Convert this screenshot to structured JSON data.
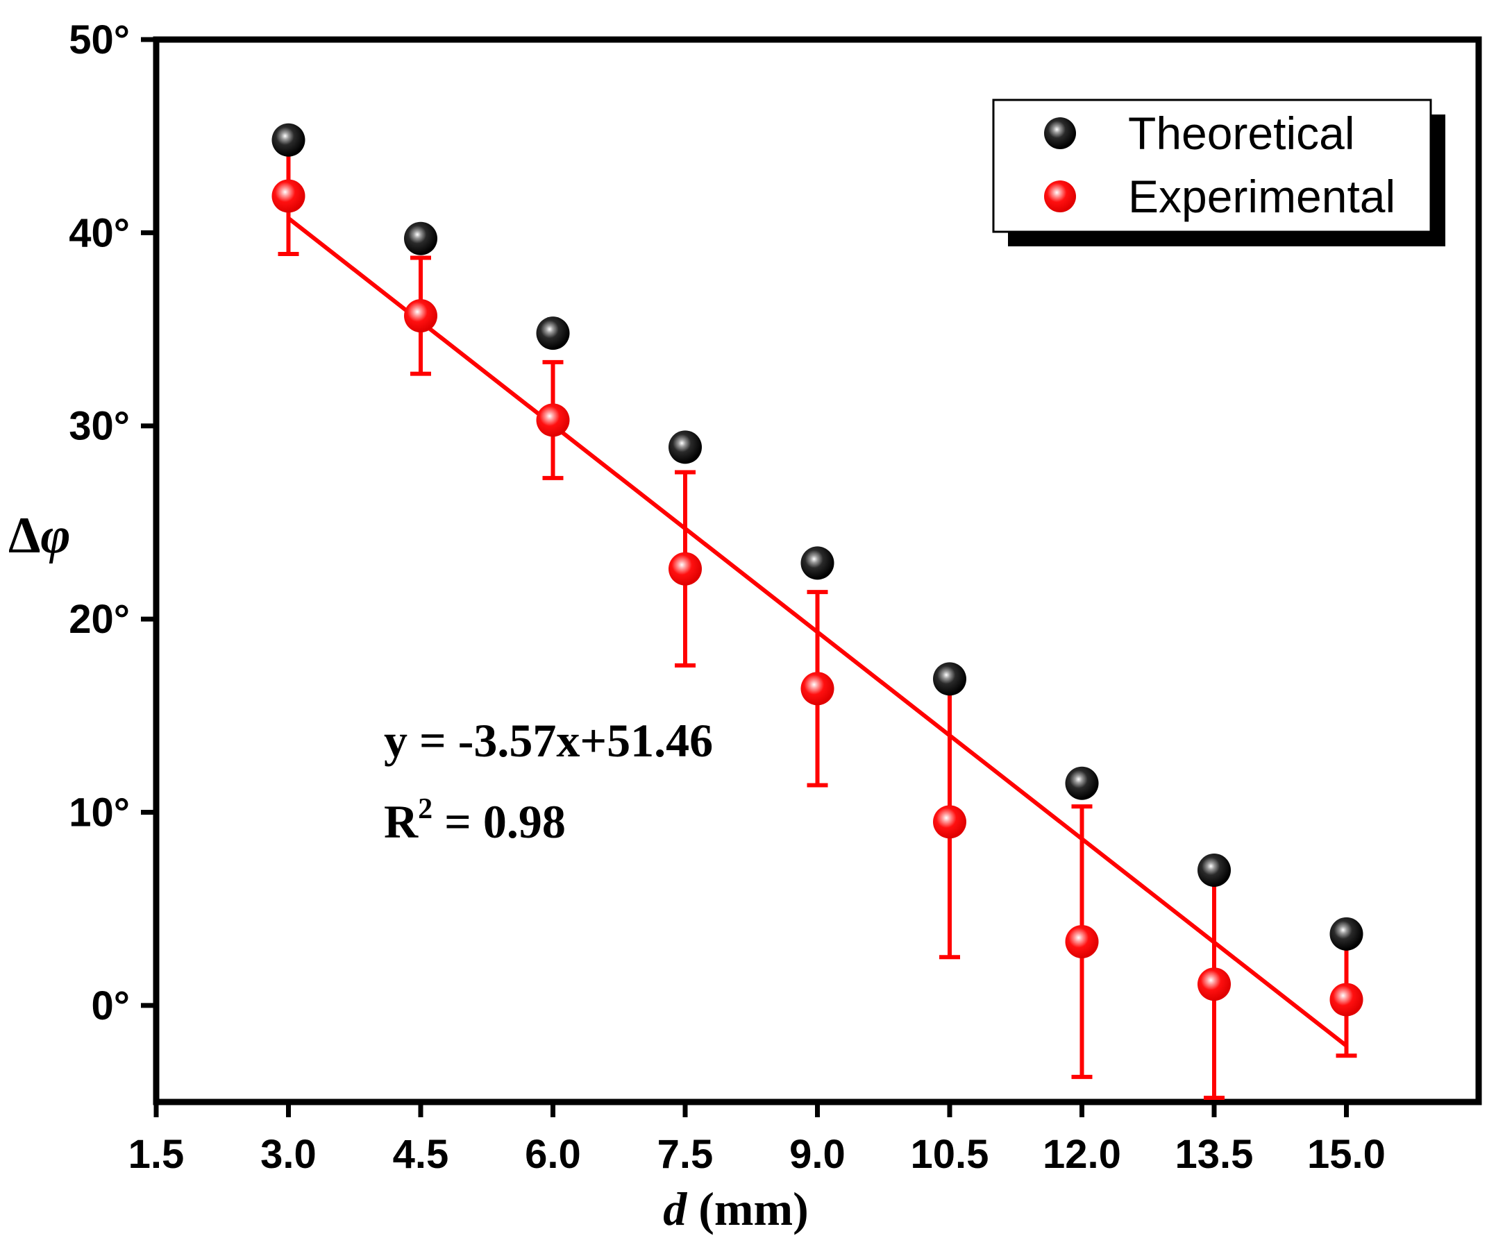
{
  "chart_data": {
    "type": "scatter",
    "title": "",
    "xlabel": "d (mm)",
    "xlabel_var": "d",
    "xlabel_unit": " (mm)",
    "ylabel": "Δφ",
    "ylabel_symbol": "Δ",
    "ylabel_var": "φ",
    "xlim": [
      1.5,
      16.5
    ],
    "ylim": [
      -5,
      50
    ],
    "x_ticks": [
      1.5,
      3.0,
      4.5,
      6.0,
      7.5,
      9.0,
      10.5,
      12.0,
      13.5,
      15.0
    ],
    "x_tick_labels": [
      "1.5",
      "3.0",
      "4.5",
      "6.0",
      "7.5",
      "9.0",
      "10.5",
      "12.0",
      "13.5",
      "15.0"
    ],
    "y_ticks": [
      0,
      10,
      20,
      30,
      40,
      50
    ],
    "y_tick_labels": [
      "0°",
      "10°",
      "20°",
      "30°",
      "40°",
      "50°"
    ],
    "grid": false,
    "legend_position": "top-right",
    "series": [
      {
        "name": "Theoretical",
        "color": "#000000",
        "x": [
          3.0,
          4.5,
          6.0,
          7.5,
          9.0,
          10.5,
          12.0,
          13.5,
          15.0
        ],
        "y": [
          44.8,
          39.7,
          34.8,
          28.9,
          22.9,
          16.9,
          11.5,
          7.0,
          3.7
        ]
      },
      {
        "name": "Experimental",
        "color": "#ff0000",
        "x": [
          3.0,
          4.5,
          6.0,
          7.5,
          9.0,
          10.5,
          12.0,
          13.5,
          15.0
        ],
        "y": [
          41.9,
          35.7,
          30.3,
          22.6,
          16.4,
          9.5,
          3.3,
          1.1,
          0.3
        ],
        "error": [
          3.0,
          3.0,
          3.0,
          5.0,
          5.0,
          7.0,
          7.0,
          6.0,
          2.9
        ]
      }
    ],
    "fit": {
      "slope": -3.57,
      "intercept": 51.46,
      "x_range": [
        3.0,
        15.0
      ],
      "color": "#ff0000",
      "equation_label": "y = -3.57x+51.46",
      "r2_prefix": "R",
      "r2_sup": "2",
      "r2_suffix": " = 0.98"
    }
  }
}
